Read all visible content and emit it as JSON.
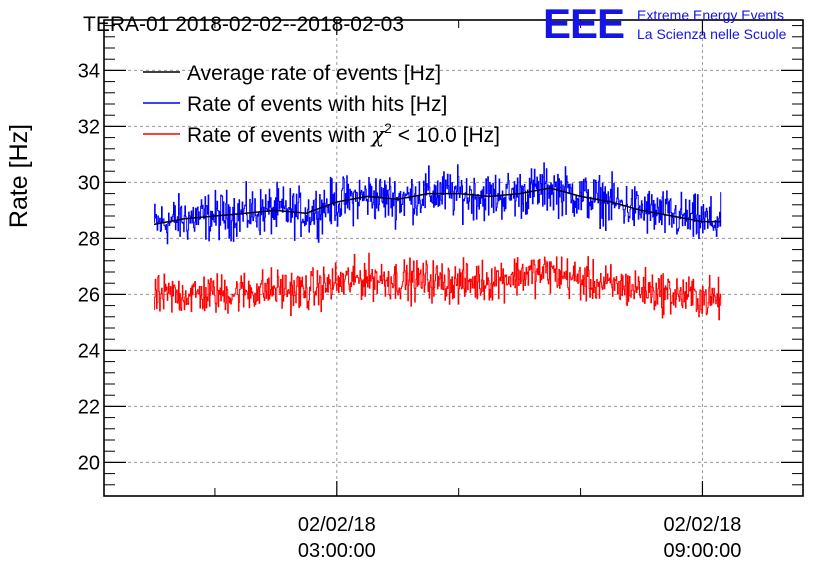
{
  "chart_data": {
    "type": "line",
    "title": "TERA-01 2018-02-02--2018-02-03",
    "ylabel": "Rate [Hz]",
    "xlabel": "",
    "ylim": [
      18.8,
      35.8
    ],
    "y_ticks": [
      20,
      22,
      24,
      26,
      28,
      30,
      32,
      34
    ],
    "x_ticks": [
      {
        "hour": 3,
        "date_label": "02/02/18",
        "time_label": "03:00:00"
      },
      {
        "hour": 9,
        "date_label": "02/02/18",
        "time_label": "09:00:00"
      }
    ],
    "x_minor_hours": [
      1,
      5,
      7
    ],
    "xlim_hours": [
      -0.82,
      10.65
    ],
    "grid": true,
    "legend_position": "top-left",
    "series": [
      {
        "name": "Average rate of events [Hz]",
        "color": "#000000",
        "x_hours": [
          0,
          0.5,
          1,
          1.5,
          2,
          2.5,
          3,
          3.5,
          4,
          4.5,
          5,
          5.5,
          6,
          6.5,
          7,
          7.5,
          8,
          8.5,
          9,
          9.3
        ],
        "values": [
          28.5,
          28.7,
          28.8,
          28.9,
          29.0,
          28.9,
          29.3,
          29.5,
          29.4,
          29.6,
          29.6,
          29.5,
          29.6,
          29.8,
          29.5,
          29.3,
          29.0,
          28.8,
          28.6,
          28.6
        ]
      },
      {
        "name": "Rate of events with hits [Hz]",
        "color": "#0000ff",
        "x_hours": [
          0,
          0.5,
          1,
          1.5,
          2,
          2.5,
          3,
          3.5,
          4,
          4.5,
          5,
          5.5,
          6,
          6.5,
          7,
          7.5,
          8,
          8.5,
          9,
          9.3
        ],
        "values": [
          28.5,
          28.7,
          28.8,
          28.9,
          29.0,
          28.9,
          29.3,
          29.5,
          29.4,
          29.6,
          29.6,
          29.5,
          29.6,
          29.8,
          29.5,
          29.3,
          29.0,
          28.8,
          28.6,
          28.6
        ],
        "noise_amplitude": 0.7
      },
      {
        "name": "Rate of events with χ² < 10.0 [Hz]",
        "color": "#ff0000",
        "x_hours": [
          0,
          0.5,
          1,
          1.5,
          2,
          2.5,
          3,
          3.5,
          4,
          4.5,
          5,
          5.5,
          6,
          6.5,
          7,
          7.5,
          8,
          8.5,
          9,
          9.3
        ],
        "values": [
          25.9,
          26.0,
          26.0,
          26.1,
          26.2,
          26.1,
          26.4,
          26.6,
          26.5,
          26.5,
          26.4,
          26.5,
          26.7,
          26.8,
          26.5,
          26.3,
          26.2,
          26.0,
          25.9,
          25.8
        ],
        "noise_amplitude": 0.6
      }
    ],
    "legend": [
      {
        "pre": "Rate of events with ",
        "sym": "χ",
        "sup": "2",
        "post": " < 10.0 [Hz]"
      }
    ]
  },
  "logo": {
    "mark": "EEE",
    "line1": "Extreme Energy Events",
    "line2": "La Scienza nelle Scuole",
    "color": "#1414e6"
  }
}
